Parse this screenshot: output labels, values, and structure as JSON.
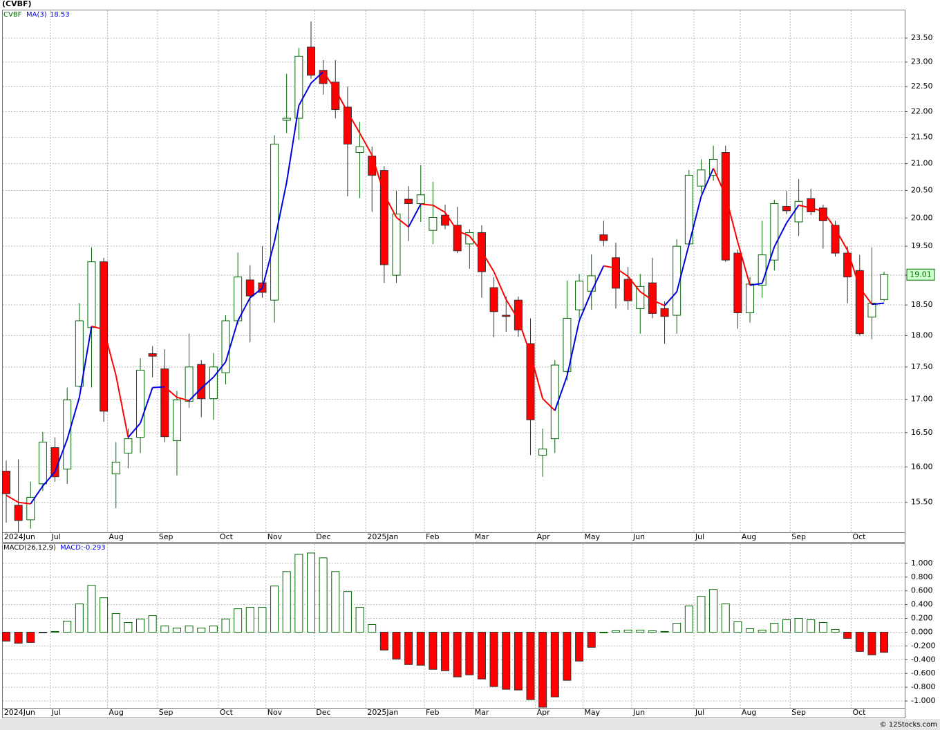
{
  "chart_data": [
    {
      "type": "candlestick",
      "title": "(CVBF)",
      "symbol": "CVBF",
      "log_scale": true,
      "grid": true,
      "up_color": "#006600",
      "down_color": "#ff0000",
      "ylim": [
        15.09,
        24.09
      ],
      "yticks": [
        {
          "value": 23.5,
          "label": "23.50"
        },
        {
          "value": 23,
          "label": "23.00"
        },
        {
          "value": 22.5,
          "label": "22.50"
        },
        {
          "value": 22,
          "label": "22.00"
        },
        {
          "value": 21.5,
          "label": "21.50"
        },
        {
          "value": 21,
          "label": "21.00"
        },
        {
          "value": 20.5,
          "label": "20.50"
        },
        {
          "value": 20,
          "label": "20.00"
        },
        {
          "value": 19.5,
          "label": "19.50"
        },
        {
          "value": 19,
          "label": "19.00"
        },
        {
          "value": 18.5,
          "label": "18.50"
        },
        {
          "value": 18,
          "label": "18.00"
        },
        {
          "value": 17.5,
          "label": "17.50"
        },
        {
          "value": 17,
          "label": "17.00"
        },
        {
          "value": 16.5,
          "label": "16.50"
        },
        {
          "value": 16,
          "label": "16.00"
        },
        {
          "value": 15.5,
          "label": "15.50"
        }
      ],
      "xlim": [
        -0.35,
        73.7
      ],
      "xticks": [
        {
          "value": -0.3,
          "label": "2024Jun"
        },
        {
          "value": 3.6,
          "label": "Jul"
        },
        {
          "value": 8.3,
          "label": "Aug"
        },
        {
          "value": 12.4,
          "label": "Sep"
        },
        {
          "value": 17.4,
          "label": "Oct"
        },
        {
          "value": 21.3,
          "label": "Nov"
        },
        {
          "value": 25.3,
          "label": "Dec"
        },
        {
          "value": 29.5,
          "label": "2025Jan"
        },
        {
          "value": 34.3,
          "label": "Feb"
        },
        {
          "value": 38.3,
          "label": "Mar"
        },
        {
          "value": 43.4,
          "label": "Apr"
        },
        {
          "value": 47.3,
          "label": "May"
        },
        {
          "value": 51.3,
          "label": "Jun"
        },
        {
          "value": 56.4,
          "label": "Jul"
        },
        {
          "value": 60.2,
          "label": "Aug"
        },
        {
          "value": 64.3,
          "label": "Sep"
        },
        {
          "value": 69.3,
          "label": "Oct"
        }
      ],
      "open": [
        15.94,
        15.46,
        15.26,
        15.76,
        16.28,
        15.97,
        17.2,
        18.13,
        19.23,
        15.9,
        16.2,
        16.43,
        17.71,
        17.47,
        16.38,
        16.97,
        17.54,
        17.01,
        17.41,
        18.24,
        18.92,
        18.87,
        18.58,
        21.83,
        21.87,
        23.31,
        22.83,
        22.59,
        22.09,
        21.21,
        21.14,
        20.87,
        19.0,
        20.34,
        20.26,
        19.78,
        20.05,
        19.87,
        19.54,
        19.74,
        18.79,
        18.33,
        18.58,
        17.87,
        16.17,
        16.41,
        17.43,
        18.42,
        18.73,
        19.7,
        19.3,
        18.93,
        18.44,
        18.87,
        18.44,
        18.33,
        19.54,
        20.58,
        20.78,
        21.21,
        19.38,
        18.37,
        18.83,
        19.26,
        20.21,
        19.93,
        20.35,
        20.18,
        19.87,
        19.38,
        19.08,
        18.3,
        18.59
      ],
      "high": [
        16.09,
        16.11,
        15.79,
        16.51,
        16.43,
        17.18,
        18.53,
        19.48,
        19.3,
        16.36,
        16.56,
        17.64,
        17.83,
        17.78,
        17.13,
        18.03,
        17.61,
        17.72,
        18.33,
        19.39,
        19.17,
        19.5,
        21.54,
        22.76,
        23.29,
        23.85,
        23.04,
        23.04,
        22.5,
        21.8,
        21.32,
        20.95,
        20.49,
        20.58,
        20.97,
        20.66,
        20.24,
        20.2,
        19.8,
        19.87,
        18.97,
        18.64,
        18.64,
        18.28,
        16.56,
        17.61,
        18.91,
        19.02,
        19.36,
        19.95,
        19.56,
        19.14,
        19.02,
        19.3,
        18.56,
        19.62,
        20.88,
        21.08,
        21.34,
        21.34,
        19.44,
        18.97,
        19.95,
        20.33,
        20.49,
        20.71,
        20.53,
        20.24,
        19.95,
        19.5,
        19.35,
        19.48,
        19.06
      ],
      "low": [
        15.22,
        15.09,
        15.14,
        15.66,
        15.79,
        15.76,
        17.18,
        17.18,
        16.66,
        15.42,
        15.98,
        16.2,
        17.34,
        16.36,
        15.88,
        16.87,
        16.73,
        16.69,
        17.23,
        18.18,
        17.89,
        18.62,
        18.21,
        21.58,
        21.45,
        22.66,
        22.34,
        21.87,
        20.39,
        20.36,
        20.11,
        18.87,
        18.87,
        19.59,
        19.93,
        19.54,
        19.8,
        19.38,
        19.11,
        18.62,
        17.97,
        18.06,
        17.98,
        16.17,
        15.86,
        16.2,
        17.29,
        18.28,
        18.42,
        19.5,
        18.44,
        18.42,
        18.03,
        18.28,
        17.87,
        18.03,
        19.5,
        20.45,
        20.68,
        19.23,
        18.11,
        18.21,
        18.62,
        19.08,
        20.07,
        19.68,
        20.05,
        19.46,
        19.32,
        18.53,
        18.0,
        17.94,
        18.56
      ],
      "close": [
        15.62,
        15.25,
        15.57,
        16.36,
        15.86,
        16.99,
        18.24,
        19.23,
        16.82,
        16.07,
        16.41,
        17.45,
        17.67,
        16.44,
        16.99,
        17.5,
        17.01,
        17.5,
        18.24,
        18.97,
        18.65,
        18.71,
        21.37,
        21.87,
        23.12,
        22.73,
        22.56,
        22.04,
        21.37,
        21.32,
        20.78,
        19.18,
        20.07,
        20.26,
        20.42,
        20.01,
        19.87,
        19.42,
        19.74,
        19.06,
        18.39,
        18.31,
        18.09,
        16.69,
        16.26,
        17.53,
        18.28,
        18.9,
        18.99,
        19.6,
        18.78,
        18.57,
        18.81,
        18.36,
        18.31,
        19.5,
        20.78,
        20.88,
        21.08,
        19.26,
        18.37,
        18.85,
        19.35,
        20.26,
        20.13,
        20.3,
        20.11,
        19.95,
        19.38,
        18.97,
        18.03,
        18.53,
        19.01
      ],
      "last_price": 19.01,
      "ma": {
        "name": "MA(3)",
        "last_value": 18.53,
        "rise_color": "#0000dd",
        "fall_color": "#ff0000",
        "values": [
          15.6,
          15.5,
          15.48,
          15.73,
          15.93,
          16.4,
          17.03,
          18.15,
          18.1,
          17.37,
          16.43,
          16.64,
          17.18,
          17.19,
          17.03,
          16.98,
          17.17,
          17.34,
          17.58,
          18.24,
          18.62,
          18.78,
          19.58,
          20.65,
          22.12,
          22.57,
          22.8,
          22.44,
          21.99,
          21.58,
          21.16,
          20.43,
          20.01,
          19.84,
          20.25,
          20.23,
          20.1,
          19.77,
          19.68,
          19.41,
          19.06,
          18.59,
          18.26,
          17.7,
          17.01,
          16.83,
          17.36,
          18.24,
          18.72,
          19.16,
          19.12,
          18.98,
          18.72,
          18.58,
          18.49,
          18.72,
          19.53,
          20.39,
          20.91,
          20.41,
          19.57,
          18.83,
          18.86,
          19.49,
          19.91,
          20.23,
          20.18,
          20.12,
          19.81,
          19.43,
          18.79,
          18.51,
          18.53
        ]
      }
    },
    {
      "type": "histogram",
      "name": "MACD(26,12,9)",
      "legend": "MACD:-0.293",
      "grid": true,
      "up_color": "#006600",
      "down_color": "#ff0000",
      "ylim": [
        -1.1,
        1.28
      ],
      "yticks": [
        {
          "value": 1,
          "label": "1.000"
        },
        {
          "value": 0.8,
          "label": "0.800"
        },
        {
          "value": 0.6,
          "label": "0.600"
        },
        {
          "value": 0.4,
          "label": "0.400"
        },
        {
          "value": 0.2,
          "label": "0.200"
        },
        {
          "value": 0,
          "label": "0.000"
        },
        {
          "value": -0.2,
          "label": "-0.200"
        },
        {
          "value": -0.4,
          "label": "-0.400"
        },
        {
          "value": -0.6,
          "label": "-0.600"
        },
        {
          "value": -0.8,
          "label": "-0.800"
        },
        {
          "value": -1,
          "label": "-1.000"
        }
      ],
      "values": [
        -0.13,
        -0.16,
        -0.15,
        -0.01,
        0.01,
        0.16,
        0.41,
        0.68,
        0.5,
        0.27,
        0.14,
        0.19,
        0.24,
        0.09,
        0.06,
        0.09,
        0.06,
        0.09,
        0.19,
        0.34,
        0.36,
        0.36,
        0.67,
        0.88,
        1.13,
        1.15,
        1.08,
        0.88,
        0.59,
        0.36,
        0.11,
        -0.26,
        -0.39,
        -0.47,
        -0.48,
        -0.54,
        -0.56,
        -0.65,
        -0.62,
        -0.68,
        -0.79,
        -0.83,
        -0.84,
        -0.98,
        -1.09,
        -0.94,
        -0.7,
        -0.42,
        -0.22,
        0.0,
        0.02,
        0.03,
        0.03,
        0.02,
        0.01,
        0.13,
        0.38,
        0.52,
        0.62,
        0.41,
        0.15,
        0.05,
        0.03,
        0.13,
        0.18,
        0.2,
        0.18,
        0.14,
        0.04,
        -0.09,
        -0.28,
        -0.33,
        -0.293
      ]
    }
  ],
  "footer": "© 12Stocks.com"
}
